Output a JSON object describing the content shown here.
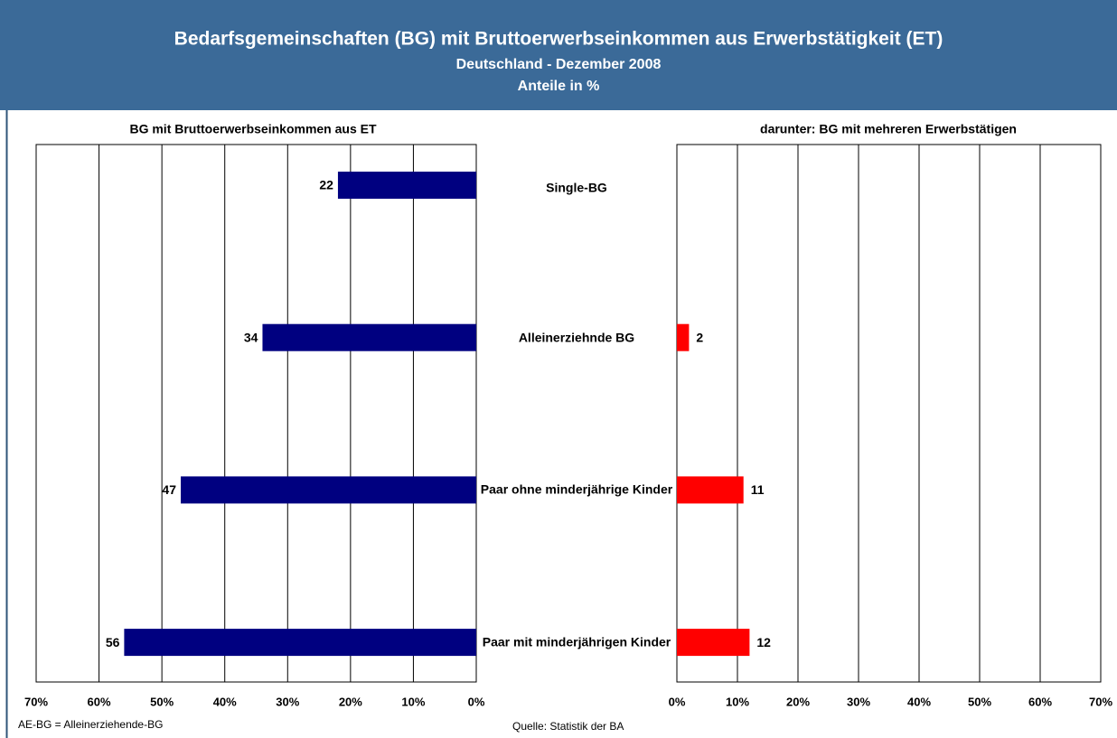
{
  "header": {
    "title": "Bedarfsgemeinschaften (BG) mit Bruttoerwerbseinkommen aus Erwerbstätigkeit (ET)",
    "subtitle": "Deutschland - Dezember 2008",
    "unit_line": "Anteile in %"
  },
  "chart_data": [
    {
      "type": "bar",
      "orientation": "horizontal",
      "title": "BG mit Bruttoerwerbseinkommen aus ET",
      "categories": [
        "Single-BG",
        "Alleinerziehnde BG",
        "Paar ohne minderjährige Kinder",
        "Paar mit minderjährigen Kinder"
      ],
      "values": [
        22,
        34,
        47,
        56
      ],
      "color": "#000080",
      "xlim": [
        70,
        0
      ],
      "xticks": [
        {
          "value": 70,
          "label": "70%"
        },
        {
          "value": 60,
          "label": "60%"
        },
        {
          "value": 50,
          "label": "50%"
        },
        {
          "value": 40,
          "label": "40%"
        },
        {
          "value": 30,
          "label": "30%"
        },
        {
          "value": 20,
          "label": "20%"
        },
        {
          "value": 10,
          "label": "10%"
        },
        {
          "value": 0,
          "label": "0%"
        }
      ],
      "grid": true
    },
    {
      "type": "bar",
      "orientation": "horizontal",
      "title": "darunter: BG mit mehreren Erwerbstätigen",
      "values": [
        null,
        2,
        11,
        12
      ],
      "color": "#ff0000",
      "xlim": [
        0,
        70
      ],
      "xticks": [
        {
          "value": 0,
          "label": "0%"
        },
        {
          "value": 10,
          "label": "10%"
        },
        {
          "value": 20,
          "label": "20%"
        },
        {
          "value": 30,
          "label": "30%"
        },
        {
          "value": 40,
          "label": "40%"
        },
        {
          "value": 50,
          "label": "50%"
        },
        {
          "value": 60,
          "label": "60%"
        },
        {
          "value": 70,
          "label": "70%"
        }
      ],
      "grid": true
    }
  ],
  "footnote": "AE-BG = Alleinerziehende-BG",
  "source": "Quelle: Statistik der BA"
}
